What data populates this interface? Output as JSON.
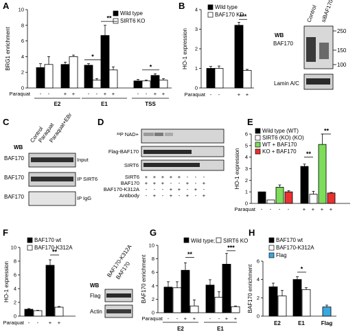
{
  "panels": [
    {
      "letter": "A",
      "chart_data": {
        "type": "bar",
        "ylabel": "BRG1 enrichment",
        "ylim": [
          0,
          10
        ],
        "yticks": [
          "0",
          "2",
          "4",
          "6",
          "8",
          "10"
        ],
        "legend": [
          "Wild type",
          "SIRT6 KO"
        ],
        "groups": [
          "E2",
          "E1",
          "TSS"
        ],
        "condition_label": "Paraquat",
        "conditions": [
          "-",
          "-",
          "+",
          "+"
        ],
        "categories": [
          "E2 -",
          "E2 +",
          "E1 -",
          "E1 +",
          "TSS -",
          "TSS +"
        ],
        "series": [
          {
            "name": "Wild type",
            "values": [
              2.6,
              3.0,
              2.9,
              6.7,
              0.9,
              1.6
            ],
            "errors": [
              0.5,
              0.3,
              0.2,
              1.3,
              0.2,
              0.2
            ]
          },
          {
            "name": "SIRT6 KO",
            "values": [
              3.0,
              4.0,
              1.0,
              2.3,
              0.9,
              1.0
            ],
            "errors": [
              1.0,
              0.2,
              0.2,
              0.4,
              0.1,
              0.2
            ]
          }
        ],
        "significance": [
          {
            "group": "E1 -",
            "mark": "*"
          },
          {
            "group": "E1 +",
            "mark": "**"
          },
          {
            "group": "TSS +",
            "mark": "*"
          }
        ]
      }
    },
    {
      "letter": "B",
      "chart_data": {
        "type": "bar",
        "ylabel": "HO-1 expression",
        "ylim": [
          0,
          4
        ],
        "yticks": [
          "0",
          "1",
          "2",
          "3",
          "4"
        ],
        "legend": [
          "Wild type",
          "BAF170 KD"
        ],
        "condition_label": "Paraquat",
        "conditions": [
          "-",
          "-",
          "+",
          "+"
        ],
        "categories": [
          "-",
          "+"
        ],
        "series": [
          {
            "name": "Wild type",
            "values": [
              1.0,
              3.2
            ],
            "errors": [
              0.1,
              0.15
            ]
          },
          {
            "name": "BAF170 KD",
            "values": [
              1.0,
              0.9
            ],
            "errors": [
              0.12,
              0.05
            ]
          }
        ],
        "significance": [
          {
            "group": "+",
            "mark": "***"
          }
        ]
      }
    },
    {
      "letter": "E",
      "chart_data": {
        "type": "bar",
        "ylabel": "HO-1 expression",
        "ylim": [
          0,
          6
        ],
        "yticks": [
          "0",
          "1",
          "2",
          "3",
          "4",
          "5",
          "6"
        ],
        "legend": [
          "Wild type (WT)",
          "SIRT6 (KO) (KO)",
          "WT + BAF170",
          "KO + BAF170"
        ],
        "condition_label": "Paraquat",
        "conditions": [
          "-",
          "-",
          "-",
          "-",
          "+",
          "+",
          "+",
          "+"
        ],
        "categories": [
          "-",
          "+"
        ],
        "series": [
          {
            "name": "Wild type (WT)",
            "values": [
              1.0,
              3.2
            ],
            "errors": [
              0,
              0.2
            ],
            "color": "#000000"
          },
          {
            "name": "SIRT6 (KO) (KO)",
            "values": [
              0.3,
              0.8
            ],
            "errors": [
              0,
              0.25
            ],
            "color": "#ffffff"
          },
          {
            "name": "WT + BAF170",
            "values": [
              1.4,
              5.1
            ],
            "errors": [
              0.2,
              0.9
            ],
            "color": "#7ddc5a"
          },
          {
            "name": "KO + BAF170",
            "values": [
              1.0,
              0.9
            ],
            "errors": [
              0.1,
              0.05
            ],
            "color": "#e83030"
          }
        ],
        "significance": [
          {
            "pair": "WT-KO",
            "mark": "**"
          },
          {
            "pair": "WT+BAF170-KO+BAF170",
            "mark": "**"
          }
        ]
      }
    },
    {
      "letter": "F",
      "chart_data": {
        "type": "bar",
        "ylabel": "HO-1 expression",
        "ylim": [
          0,
          10
        ],
        "yticks": [
          "0",
          "2",
          "4",
          "6",
          "8",
          "10"
        ],
        "legend": [
          "BAF170 wt",
          "BAF170-K312A"
        ],
        "condition_label": "Paraquat",
        "conditions": [
          "-",
          "-",
          "+",
          "+"
        ],
        "categories": [
          "-",
          "+"
        ],
        "series": [
          {
            "name": "BAF170 wt",
            "values": [
              1.0,
              7.4
            ],
            "errors": [
              0.1,
              0.8
            ]
          },
          {
            "name": "BAF170-K312A",
            "values": [
              0.8,
              1.3
            ],
            "errors": [
              0.05,
              0.1
            ]
          }
        ],
        "significance": [
          {
            "group": "+",
            "mark": "**"
          }
        ]
      }
    },
    {
      "letter": "G",
      "chart_data": {
        "type": "bar",
        "ylabel": "BAF170  enrichment",
        "ylim": [
          0,
          10
        ],
        "yticks": [
          "0",
          "2",
          "4",
          "6",
          "8",
          "10"
        ],
        "legend": [
          "Wild type;",
          "SIRT6 KO"
        ],
        "groups": [
          "E2",
          "E1"
        ],
        "condition_label": "Paraquat",
        "conditions": [
          "-",
          "-",
          "+",
          "+"
        ],
        "categories": [
          "E2 -",
          "E2 +",
          "E1 -",
          "E1 +"
        ],
        "series": [
          {
            "name": "Wild type;",
            "values": [
              3.8,
              6.3,
              4.1,
              7.2
            ],
            "errors": [
              0.8,
              1.1,
              0.8,
              1.6
            ]
          },
          {
            "name": "SIRT6 KO",
            "values": [
              3.7,
              1.0,
              2.3,
              0.9
            ],
            "errors": [
              0.9,
              0.9,
              0.8,
              0.1
            ]
          }
        ],
        "significance": [
          {
            "group": "E2 +",
            "mark": "**"
          },
          {
            "group": "E1 +",
            "mark": "***"
          }
        ]
      }
    },
    {
      "letter": "H",
      "chart_data": {
        "type": "bar",
        "ylabel": "BAF170  enrichment",
        "ylim": [
          0,
          6
        ],
        "yticks": [
          "0",
          "2",
          "4",
          "6"
        ],
        "legend": [
          "BAF170 wt",
          "BAF170-K312A",
          "Flag"
        ],
        "categories": [
          "E2",
          "E1",
          "Flag"
        ],
        "series": [
          {
            "name": "BAF170 wt",
            "values": [
              3.2,
              4.0,
              null
            ],
            "errors": [
              0.4,
              0.3,
              null
            ],
            "color": "#000000"
          },
          {
            "name": "BAF170-K312A",
            "values": [
              2.2,
              2.9,
              null
            ],
            "errors": [
              0.6,
              0.2,
              null
            ],
            "color": "#ffffff"
          },
          {
            "name": "Flag",
            "values": [
              null,
              null,
              1.0
            ],
            "errors": [
              null,
              null,
              0.2
            ],
            "color": "#3aa8e0"
          }
        ],
        "significance": [
          {
            "group": "E1",
            "mark": "*"
          }
        ]
      }
    }
  ],
  "blots": {
    "B": {
      "letter": "",
      "lanes": [
        "Control",
        "siBAF170"
      ],
      "wb": "WB",
      "protein": "BAF170",
      "loading": "Lamin A/C",
      "mw": [
        "250",
        "150",
        "100"
      ]
    },
    "C": {
      "letter": "C",
      "lanes": [
        "Control",
        "Paraquat",
        "Paraquat+EBr"
      ],
      "wb": "WB",
      "rows": [
        {
          "protein": "BAF170",
          "label": "Input"
        },
        {
          "protein": "BAF170",
          "label": "IP SIRT6"
        },
        {
          "protein": "BAF170",
          "label": "IP IgG"
        }
      ]
    },
    "D": {
      "letter": "D",
      "rows": [
        "³²P NAD+",
        "Flag-BAF170",
        "SIRT6"
      ],
      "table": [
        {
          "label": "SIRT6",
          "signs": [
            "+",
            "+",
            "+",
            "+",
            "+",
            "-",
            "-",
            "-"
          ]
        },
        {
          "label": "BAF170",
          "signs": [
            "+",
            "+",
            "+",
            "-",
            "-",
            "+",
            "-",
            "+"
          ]
        },
        {
          "label": "BAF170-K312A",
          "signs": [
            "-",
            "-",
            "-",
            "+",
            "+",
            "-",
            "+",
            "-"
          ]
        },
        {
          "label": "Antibody",
          "signs": [
            "-",
            "+",
            "-",
            "+",
            "-",
            "+",
            "-",
            "+"
          ]
        }
      ]
    },
    "F": {
      "lanes": [
        "BAF170",
        "BAF170-K312A"
      ],
      "wb": "WB",
      "rows": [
        "Flag",
        "Actin"
      ]
    }
  }
}
